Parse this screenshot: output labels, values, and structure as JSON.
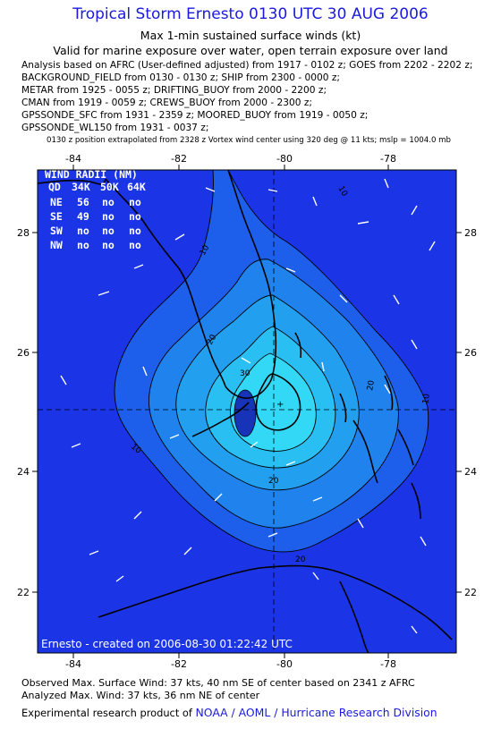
{
  "header": {
    "title": "Tropical Storm Ernesto 0130 UTC 30 AUG 2006",
    "subtitle1": "Max 1-min sustained surface winds (kt)",
    "subtitle2": "Valid for marine exposure over water, open terrain exposure over land",
    "analysis_lines": [
      "Analysis based on  AFRC (User-defined adjusted) from 1917 - 0102 z;  GOES from 2202 - 2202 z;",
      "BACKGROUND_FIELD from 0130 - 0130 z;  SHIP from 2300 - 0000 z;",
      "METAR from 1925 - 0055 z;  DRIFTING_BUOY from 2000 - 2200 z;",
      "CMAN from 1919 - 0059 z;  CREWS_BUOY from 2000 - 2300 z;",
      "GPSSONDE_SFC from 1931 - 2359 z;  MOORED_BUOY from 1919 - 0050 z;",
      "GPSSONDE_WL150 from 1931 - 0037 z;"
    ],
    "position_note": "0130 z position extrapolated from 2328 z Vortex wind center using 320 deg @ 11 kts; mslp = 1004.0 mb"
  },
  "map": {
    "x_ticks": [
      "-84",
      "-82",
      "-80",
      "-78"
    ],
    "y_ticks": [
      "28",
      "26",
      "24",
      "22"
    ],
    "contour_labels": [
      "10",
      "20",
      "30",
      "20",
      "10",
      "10",
      "10",
      "20",
      "20"
    ],
    "colors": {
      "background": "#1a34e6",
      "level_10": "#1d5fea",
      "level_15": "#1f82ed",
      "level_20": "#22a0ef",
      "level_25": "#29bff3",
      "level_30": "#33d8f6",
      "level_35": "#5ff0f9",
      "coast": "#000000",
      "wind_barb": "#ffffff"
    },
    "wind_radii": {
      "title": "WIND RADII (NM)",
      "header": [
        "QD",
        "34K",
        "50K",
        "64K"
      ],
      "rows": [
        [
          "NE",
          "56",
          "no",
          "no"
        ],
        [
          "SE",
          "49",
          "no",
          "no"
        ],
        [
          "SW",
          "no",
          "no",
          "no"
        ],
        [
          "NW",
          "no",
          "no",
          "no"
        ]
      ]
    },
    "stamp": "Ernesto - created on 2006-08-30 01:22:42 UTC"
  },
  "footer": {
    "observed": "Observed Max. Surface Wind: 37 kts, 40 nm SE of center based on 2341 z AFRC",
    "analyzed": "Analyzed Max. Wind: 37 kts, 36 nm NE of center",
    "credit_prefix": "Experimental research product of",
    "credit_org": "NOAA / AOML / Hurricane Research Division"
  }
}
